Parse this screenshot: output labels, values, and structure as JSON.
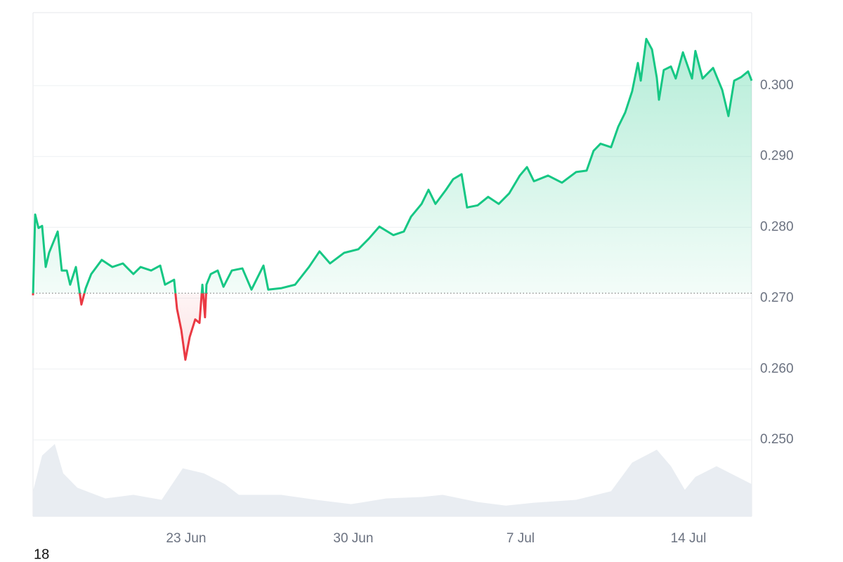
{
  "chart_data": {
    "type": "line",
    "annotation": "18",
    "baseline": 0.2707,
    "up_color": "#16c784",
    "down_color": "#ea3943",
    "volume_color": "#e9edf2",
    "xlim": [
      0,
      30
    ],
    "ylim": [
      0.2392,
      0.3103
    ],
    "grid": true,
    "xticks": [
      {
        "value": 6.39,
        "label": "23 Jun"
      },
      {
        "value": 13.37,
        "label": "30 Jun"
      },
      {
        "value": 20.35,
        "label": "7 Jul"
      },
      {
        "value": 27.36,
        "label": "14 Jul"
      }
    ],
    "yticks": [
      {
        "value": 0.25,
        "label": "0.250"
      },
      {
        "value": 0.26,
        "label": "0.260"
      },
      {
        "value": 0.27,
        "label": "0.270"
      },
      {
        "value": 0.28,
        "label": "0.280"
      },
      {
        "value": 0.29,
        "label": "0.290"
      },
      {
        "value": 0.3,
        "label": "0.300"
      }
    ],
    "x": [
      0,
      0.09,
      0.23,
      0.38,
      0.53,
      0.67,
      1.03,
      1.2,
      1.41,
      1.55,
      1.79,
      2.02,
      2.2,
      2.43,
      2.87,
      3.31,
      3.75,
      4.19,
      4.49,
      4.93,
      5.31,
      5.51,
      5.89,
      6.01,
      6.19,
      6.36,
      6.54,
      6.77,
      6.95,
      7.07,
      7.18,
      7.24,
      7.42,
      7.71,
      7.95,
      8.3,
      8.74,
      9.12,
      9.62,
      9.82,
      10.35,
      10.94,
      11.52,
      11.96,
      12.4,
      12.99,
      13.58,
      14.02,
      14.46,
      15.04,
      15.48,
      15.78,
      16.22,
      16.51,
      16.8,
      17.24,
      17.54,
      17.89,
      18.12,
      18.56,
      19.0,
      19.44,
      19.88,
      20.32,
      20.62,
      20.91,
      21.5,
      22.08,
      22.67,
      23.11,
      23.4,
      23.69,
      24.13,
      24.43,
      24.72,
      25.01,
      25.25,
      25.37,
      25.6,
      25.84,
      26.04,
      26.13,
      26.33,
      26.63,
      26.83,
      27.13,
      27.51,
      27.65,
      27.95,
      28.39,
      28.77,
      29.03,
      29.27,
      29.56,
      29.85,
      30.0
    ],
    "series": [
      {
        "values": [
          0.2704,
          0.2818,
          0.2799,
          0.2802,
          0.2744,
          0.2764,
          0.2794,
          0.2739,
          0.2739,
          0.2719,
          0.2744,
          0.2691,
          0.2714,
          0.2734,
          0.2754,
          0.2744,
          0.2749,
          0.2734,
          0.2744,
          0.2739,
          0.2746,
          0.2719,
          0.2726,
          0.2685,
          0.2655,
          0.2613,
          0.2645,
          0.267,
          0.2665,
          0.2719,
          0.2673,
          0.2719,
          0.2734,
          0.2739,
          0.2716,
          0.2739,
          0.2742,
          0.2712,
          0.2746,
          0.2712,
          0.2714,
          0.2719,
          0.2744,
          0.2766,
          0.2749,
          0.2764,
          0.2769,
          0.2784,
          0.2801,
          0.2789,
          0.2794,
          0.2815,
          0.2833,
          0.2853,
          0.2833,
          0.2853,
          0.2868,
          0.2875,
          0.2828,
          0.2831,
          0.2843,
          0.2833,
          0.2848,
          0.2873,
          0.2885,
          0.2865,
          0.2873,
          0.2863,
          0.2878,
          0.288,
          0.2908,
          0.2918,
          0.2913,
          0.2942,
          0.2962,
          0.2992,
          0.3032,
          0.3007,
          0.3066,
          0.3051,
          0.3011,
          0.298,
          0.3022,
          0.3027,
          0.301,
          0.3047,
          0.301,
          0.3049,
          0.301,
          0.3025,
          0.2994,
          0.2957,
          0.3007,
          0.3012,
          0.302,
          0.3007
        ]
      }
    ],
    "volume": {
      "x": [
        0,
        0.38,
        0.91,
        1.26,
        1.85,
        3.02,
        4.19,
        5.37,
        6.25,
        7.13,
        8.01,
        8.59,
        10.35,
        11.82,
        13.28,
        14.75,
        16.22,
        17.1,
        18.56,
        19.74,
        20.91,
        22.67,
        24.13,
        25.01,
        26.04,
        26.63,
        27.21,
        27.65,
        28.53,
        29.41,
        30
      ],
      "values": [
        35,
        85,
        101,
        60,
        40,
        25,
        30,
        23,
        67,
        60,
        45,
        30,
        30,
        23,
        17,
        25,
        27,
        30,
        20,
        15,
        19,
        23,
        35,
        75,
        93,
        70,
        37,
        55,
        70,
        55,
        45
      ]
    }
  }
}
